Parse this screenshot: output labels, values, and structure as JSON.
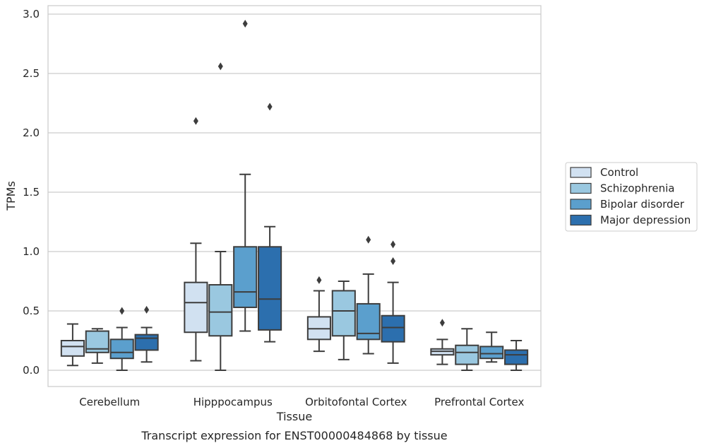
{
  "chart_data": {
    "type": "box",
    "title": "",
    "caption": "Transcript expression for ENST00000484868 by tissue",
    "xlabel": "Tissue",
    "ylabel": "TPMs",
    "ylim": [
      -0.14,
      3.07
    ],
    "yticks": [
      0.0,
      0.5,
      1.0,
      1.5,
      2.0,
      2.5,
      3.0
    ],
    "ytick_labels": [
      "0.0",
      "0.5",
      "1.0",
      "1.5",
      "2.0",
      "2.5",
      "3.0"
    ],
    "grid": "horizontal",
    "legend_position": "right",
    "categories": [
      "Cerebellum",
      "Hipppocampus",
      "Orbitofontal Cortex",
      "Prefrontal Cortex"
    ],
    "series": [
      {
        "name": "Control",
        "color": "#d1e1f1",
        "boxes": [
          {
            "whislo": 0.04,
            "q1": 0.12,
            "med": 0.2,
            "q3": 0.25,
            "whishi": 0.39,
            "fliers": []
          },
          {
            "whislo": 0.08,
            "q1": 0.32,
            "med": 0.57,
            "q3": 0.74,
            "whishi": 1.07,
            "fliers": [
              2.1
            ]
          },
          {
            "whislo": 0.16,
            "q1": 0.26,
            "med": 0.35,
            "q3": 0.45,
            "whishi": 0.67,
            "fliers": [
              0.76
            ]
          },
          {
            "whislo": 0.05,
            "q1": 0.13,
            "med": 0.16,
            "q3": 0.18,
            "whishi": 0.26,
            "fliers": [
              0.4
            ]
          }
        ]
      },
      {
        "name": "Schizophrenia",
        "color": "#9ac8e0",
        "boxes": [
          {
            "whislo": 0.06,
            "q1": 0.15,
            "med": 0.18,
            "q3": 0.33,
            "whishi": 0.35,
            "fliers": []
          },
          {
            "whislo": 0.0,
            "q1": 0.29,
            "med": 0.49,
            "q3": 0.72,
            "whishi": 1.0,
            "fliers": [
              2.56
            ]
          },
          {
            "whislo": 0.09,
            "q1": 0.29,
            "med": 0.5,
            "q3": 0.67,
            "whishi": 0.75,
            "fliers": []
          },
          {
            "whislo": 0.0,
            "q1": 0.05,
            "med": 0.15,
            "q3": 0.21,
            "whishi": 0.35,
            "fliers": []
          }
        ]
      },
      {
        "name": "Bipolar disorder",
        "color": "#5b9fcd",
        "boxes": [
          {
            "whislo": 0.0,
            "q1": 0.1,
            "med": 0.15,
            "q3": 0.26,
            "whishi": 0.36,
            "fliers": [
              0.5
            ]
          },
          {
            "whislo": 0.33,
            "q1": 0.53,
            "med": 0.66,
            "q3": 1.04,
            "whishi": 1.65,
            "fliers": [
              2.92
            ]
          },
          {
            "whislo": 0.14,
            "q1": 0.26,
            "med": 0.31,
            "q3": 0.56,
            "whishi": 0.81,
            "fliers": [
              1.1
            ]
          },
          {
            "whislo": 0.07,
            "q1": 0.1,
            "med": 0.14,
            "q3": 0.2,
            "whishi": 0.32,
            "fliers": []
          }
        ]
      },
      {
        "name": "Major depression",
        "color": "#2c6fae",
        "boxes": [
          {
            "whislo": 0.07,
            "q1": 0.17,
            "med": 0.27,
            "q3": 0.3,
            "whishi": 0.36,
            "fliers": [
              0.51
            ]
          },
          {
            "whislo": 0.24,
            "q1": 0.34,
            "med": 0.6,
            "q3": 1.04,
            "whishi": 1.21,
            "fliers": [
              2.22
            ]
          },
          {
            "whislo": 0.06,
            "q1": 0.24,
            "med": 0.36,
            "q3": 0.46,
            "whishi": 0.74,
            "fliers": [
              0.92,
              1.06
            ]
          },
          {
            "whislo": 0.0,
            "q1": 0.05,
            "med": 0.13,
            "q3": 0.17,
            "whishi": 0.25,
            "fliers": []
          }
        ]
      }
    ]
  }
}
